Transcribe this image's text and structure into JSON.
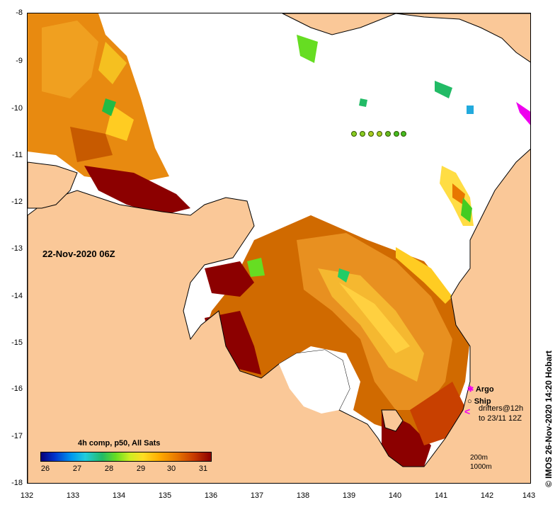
{
  "map": {
    "timestamp": "22-Nov-2020 06Z",
    "colorbar": {
      "title": "4h comp, p50, All Sats",
      "labels": [
        "26",
        "27",
        "28",
        "29",
        "30",
        "31"
      ],
      "unit": ""
    },
    "axes": {
      "x_ticks": [
        "132",
        "133",
        "134",
        "135",
        "136",
        "137",
        "138",
        "139",
        "140",
        "141",
        "142",
        "143"
      ],
      "y_ticks": [
        "-8",
        "-9",
        "-10",
        "-11",
        "-12",
        "-13",
        "-14",
        "-15",
        "-16",
        "-17",
        "-18"
      ],
      "x_range": [
        132,
        143
      ],
      "y_range": [
        -18,
        -8
      ]
    },
    "legend": {
      "argo": "Argo",
      "ship": "Ship",
      "drifters_line1": "drifters@12h",
      "drifters_line2": "to 23/11 12Z",
      "depth_200": "200m",
      "depth_1000": "1000m"
    },
    "credit": "© IMOS 26-Nov-2020 14:20 Hobart",
    "colors": {
      "land": "#fac898",
      "no_data": "#ffffff",
      "sst_hot": "#8c0000",
      "sst_warm": "#c73a00",
      "sst_mid": "#e87700",
      "sst_cool": "#ffaa00",
      "argo": "#ee00ee"
    }
  }
}
